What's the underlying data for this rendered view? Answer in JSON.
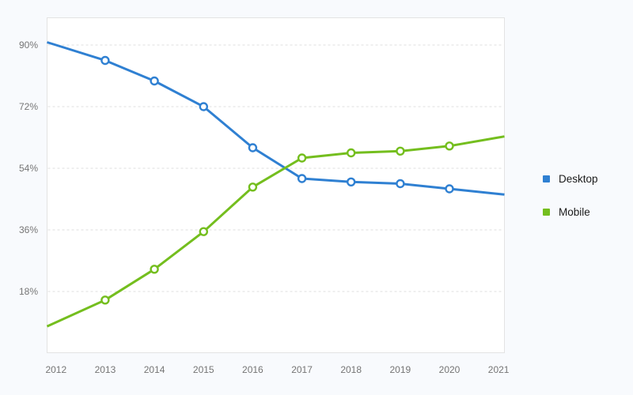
{
  "colors": {
    "background": "#f8fafd",
    "plot_background": "#ffffff",
    "plot_border": "#e3e3e3",
    "gridline": "#dfdfdf",
    "axis_label": "#757575",
    "legend_label": "#1b1b1b"
  },
  "chart_data": {
    "type": "line",
    "title": "",
    "categories": [
      "2012",
      "2013",
      "2014",
      "2015",
      "2016",
      "2017",
      "2018",
      "2019",
      "2020",
      "2021"
    ],
    "series": [
      {
        "name": "Desktop",
        "color": "#2F80D2",
        "values": [
          90,
          85.5,
          79.5,
          72,
          60,
          51,
          50,
          49.5,
          48,
          46.5
        ]
      },
      {
        "name": "Mobile",
        "color": "#74BE1E",
        "values": [
          9,
          15.5,
          24.5,
          35.5,
          48.5,
          57,
          58.5,
          59,
          60.5,
          63
        ]
      }
    ],
    "unit": "%",
    "y_ticks": [
      {
        "value": 90,
        "label": "90%"
      },
      {
        "value": 72,
        "label": "72%"
      },
      {
        "value": 54,
        "label": "54%"
      },
      {
        "value": 36,
        "label": "36%"
      },
      {
        "value": 18,
        "label": "18%"
      }
    ],
    "ylim": [
      0,
      98
    ],
    "xlabel": "",
    "ylabel": "",
    "grid": "horizontal-dashed",
    "legend_position": "right",
    "marker_style": "open-circle-on-interior-points",
    "line_extends_to_plot_edges": true
  }
}
